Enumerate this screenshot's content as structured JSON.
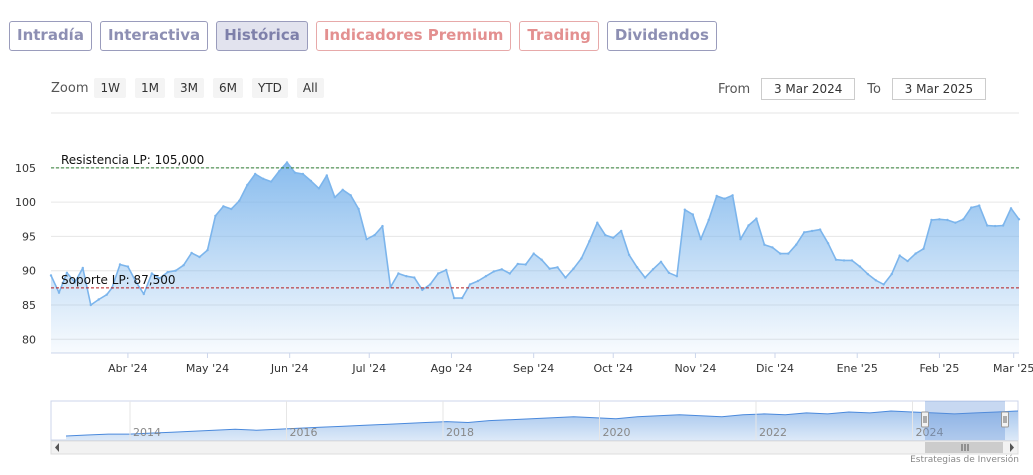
{
  "tabs": [
    {
      "label": "Intradía",
      "state": "normal"
    },
    {
      "label": "Interactiva",
      "state": "normal"
    },
    {
      "label": "Histórica",
      "state": "active"
    },
    {
      "label": "Indicadores Premium",
      "state": "premium"
    },
    {
      "label": "Trading",
      "state": "premium"
    },
    {
      "label": "Dividendos",
      "state": "normal"
    }
  ],
  "zoom": {
    "label": "Zoom",
    "buttons": [
      "1W",
      "1M",
      "3M",
      "6M",
      "YTD",
      "All"
    ]
  },
  "range": {
    "from_label": "From",
    "from_value": "3 Mar 2024",
    "to_label": "To",
    "to_value": "3 Mar 2025"
  },
  "credit": "Estrategias de Inversión",
  "colors": {
    "line": "#7cb5ec",
    "resistance": "#2e7d32",
    "support": "#b71c1c",
    "navigator": "#4a89dc"
  },
  "chart_data": {
    "type": "area",
    "title": "",
    "xlabel": "",
    "ylabel": "",
    "ylim": [
      78,
      113
    ],
    "yticks": [
      80,
      85,
      90,
      95,
      100,
      105
    ],
    "xticks": [
      {
        "label": "Abr '24",
        "date": "2024-04-01"
      },
      {
        "label": "May '24",
        "date": "2024-05-01"
      },
      {
        "label": "Jun '24",
        "date": "2024-06-01"
      },
      {
        "label": "Jul '24",
        "date": "2024-07-01"
      },
      {
        "label": "Ago '24",
        "date": "2024-08-01"
      },
      {
        "label": "Sep '24",
        "date": "2024-09-01"
      },
      {
        "label": "Oct '24",
        "date": "2024-10-01"
      },
      {
        "label": "Nov '24",
        "date": "2024-11-01"
      },
      {
        "label": "Dic '24",
        "date": "2024-12-01"
      },
      {
        "label": "Ene '25",
        "date": "2025-01-01"
      },
      {
        "label": "Feb '25",
        "date": "2025-02-01"
      },
      {
        "label": "Mar '25",
        "date": "2025-03-01"
      }
    ],
    "x_range": [
      "2024-03-03",
      "2025-03-03"
    ],
    "series": [
      {
        "x": [
          "2024-03-03",
          "2024-03-06",
          "2024-03-09",
          "2024-03-12",
          "2024-03-15",
          "2024-03-18",
          "2024-03-21",
          "2024-03-24",
          "2024-03-26",
          "2024-03-29",
          "2024-04-01",
          "2024-04-04",
          "2024-04-07",
          "2024-04-10",
          "2024-04-13",
          "2024-04-16",
          "2024-04-19",
          "2024-04-22",
          "2024-04-25",
          "2024-04-28",
          "2024-05-01",
          "2024-05-04",
          "2024-05-07",
          "2024-05-10",
          "2024-05-13",
          "2024-05-16",
          "2024-05-19",
          "2024-05-22",
          "2024-05-25",
          "2024-05-28",
          "2024-05-31",
          "2024-06-03",
          "2024-06-06",
          "2024-06-09",
          "2024-06-12",
          "2024-06-15",
          "2024-06-18",
          "2024-06-21",
          "2024-06-24",
          "2024-06-27",
          "2024-06-30",
          "2024-07-03",
          "2024-07-06",
          "2024-07-09",
          "2024-07-12",
          "2024-07-15",
          "2024-07-18",
          "2024-07-21",
          "2024-07-24",
          "2024-07-27",
          "2024-07-30",
          "2024-08-02",
          "2024-08-05",
          "2024-08-08",
          "2024-08-11",
          "2024-08-14",
          "2024-08-17",
          "2024-08-20",
          "2024-08-23",
          "2024-08-26",
          "2024-08-29",
          "2024-09-01",
          "2024-09-04",
          "2024-09-07",
          "2024-09-10",
          "2024-09-13",
          "2024-09-16",
          "2024-09-19",
          "2024-09-22",
          "2024-09-25",
          "2024-09-28",
          "2024-10-01",
          "2024-10-04",
          "2024-10-07",
          "2024-10-10",
          "2024-10-13",
          "2024-10-16",
          "2024-10-19",
          "2024-10-22",
          "2024-10-25",
          "2024-10-28",
          "2024-10-31",
          "2024-11-03",
          "2024-11-06",
          "2024-11-09",
          "2024-11-12",
          "2024-11-15",
          "2024-11-18",
          "2024-11-21",
          "2024-11-24",
          "2024-11-27",
          "2024-11-30",
          "2024-12-03",
          "2024-12-06",
          "2024-12-09",
          "2024-12-12",
          "2024-12-15",
          "2024-12-18",
          "2024-12-21",
          "2024-12-24",
          "2024-12-27",
          "2024-12-30",
          "2025-01-02",
          "2025-01-05",
          "2025-01-08",
          "2025-01-11",
          "2025-01-14",
          "2025-01-17",
          "2025-01-20",
          "2025-01-23",
          "2025-01-26",
          "2025-01-29",
          "2025-02-01",
          "2025-02-04",
          "2025-02-07",
          "2025-02-10",
          "2025-02-13",
          "2025-02-16",
          "2025-02-19",
          "2025-02-22",
          "2025-02-25",
          "2025-02-28",
          "2025-03-03"
        ],
        "y": [
          89.3,
          86.8,
          89.7,
          88.3,
          90.4,
          85.0,
          85.8,
          86.5,
          87.5,
          90.9,
          90.6,
          88.4,
          86.6,
          89.6,
          88.9,
          89.8,
          90.0,
          90.8,
          92.6,
          92.0,
          93.0,
          98.0,
          99.4,
          99.0,
          100.2,
          102.5,
          104.1,
          103.4,
          103.0,
          104.5,
          105.8,
          104.3,
          104.1,
          103.1,
          102.0,
          103.9,
          100.7,
          101.8,
          101.0,
          99.0,
          94.6,
          95.2,
          96.5,
          87.6,
          89.6,
          89.2,
          89.0,
          87.2,
          88.0,
          89.6,
          90.1,
          86.0,
          86.0,
          88.0,
          88.5,
          89.2,
          89.9,
          90.2,
          89.6,
          91.0,
          90.9,
          92.5,
          91.6,
          90.3,
          90.5,
          89.0,
          90.3,
          91.8,
          94.3,
          97.0,
          95.2,
          94.8,
          95.8,
          92.3,
          90.5,
          89.0,
          90.2,
          91.3,
          89.7,
          89.2,
          98.9,
          98.2,
          94.6,
          97.4,
          100.9,
          100.5,
          101.0,
          94.6,
          96.6,
          97.6,
          93.8,
          93.4,
          92.5,
          92.5,
          93.8,
          95.6,
          95.8,
          96.0,
          94.0,
          91.6,
          91.5,
          91.5,
          90.6,
          89.5,
          88.6,
          88.0,
          89.5,
          92.2,
          91.4,
          92.5,
          93.2,
          97.4,
          97.5,
          97.4,
          97.0,
          97.5,
          99.2,
          99.5,
          96.6,
          96.5,
          96.6,
          99.1,
          97.5
        ]
      }
    ],
    "annotations": [
      {
        "label": "Resistencia LP: 105,000",
        "value": 105.0,
        "style": "dashed-green"
      },
      {
        "label": "Soporte LP: 87,500",
        "value": 87.5,
        "style": "dashed-red"
      }
    ],
    "grid": "horizontal",
    "navigator": {
      "year_labels": [
        "2014",
        "2016",
        "2018",
        "2020",
        "2022",
        "2024"
      ],
      "values": [
        80,
        81,
        82,
        82,
        83,
        84,
        85,
        86,
        87,
        86,
        87,
        88,
        89,
        90,
        91,
        92,
        93,
        94,
        95,
        94,
        96,
        97,
        98,
        99,
        100,
        99,
        98,
        100,
        101,
        102,
        101,
        100,
        102,
        103,
        102,
        104,
        103,
        105,
        104,
        106,
        105,
        104,
        103,
        104,
        105,
        106
      ]
    }
  }
}
